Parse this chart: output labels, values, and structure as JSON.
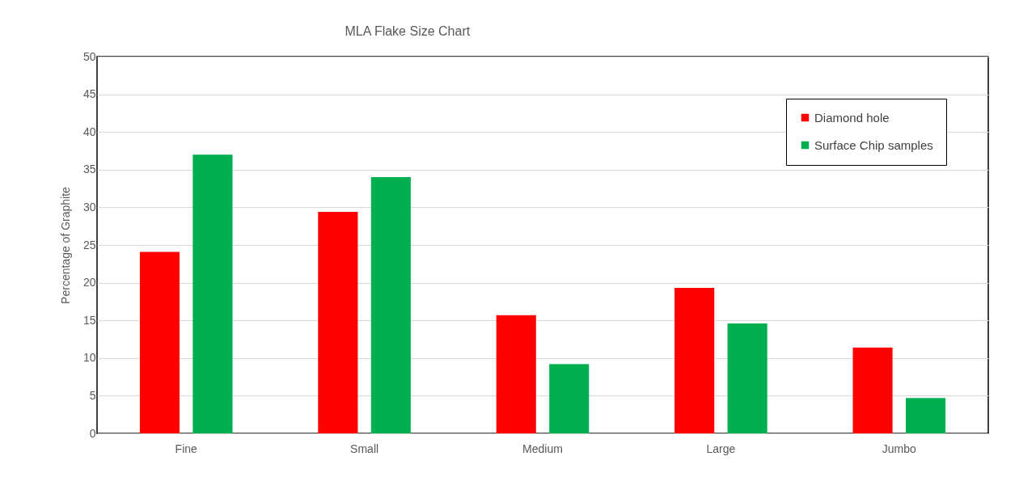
{
  "chart_data": {
    "type": "bar",
    "title": "MLA Flake Size Chart",
    "ylabel": "Percentage of Graphite",
    "categories": [
      "Fine",
      "Small",
      "Medium",
      "Large",
      "Jumbo"
    ],
    "series": [
      {
        "name": "Diamond hole",
        "color": "#ff0000",
        "values": [
          24.1,
          29.4,
          15.7,
          19.3,
          11.4
        ]
      },
      {
        "name": "Surface Chip samples",
        "color": "#00b050",
        "values": [
          37,
          34,
          9.2,
          14.6,
          4.7
        ]
      }
    ],
    "ylim": [
      0,
      50
    ],
    "yticks": [
      0,
      5,
      10,
      15,
      20,
      25,
      30,
      35,
      40,
      45,
      50
    ],
    "grid": "y",
    "legend": "top right"
  }
}
